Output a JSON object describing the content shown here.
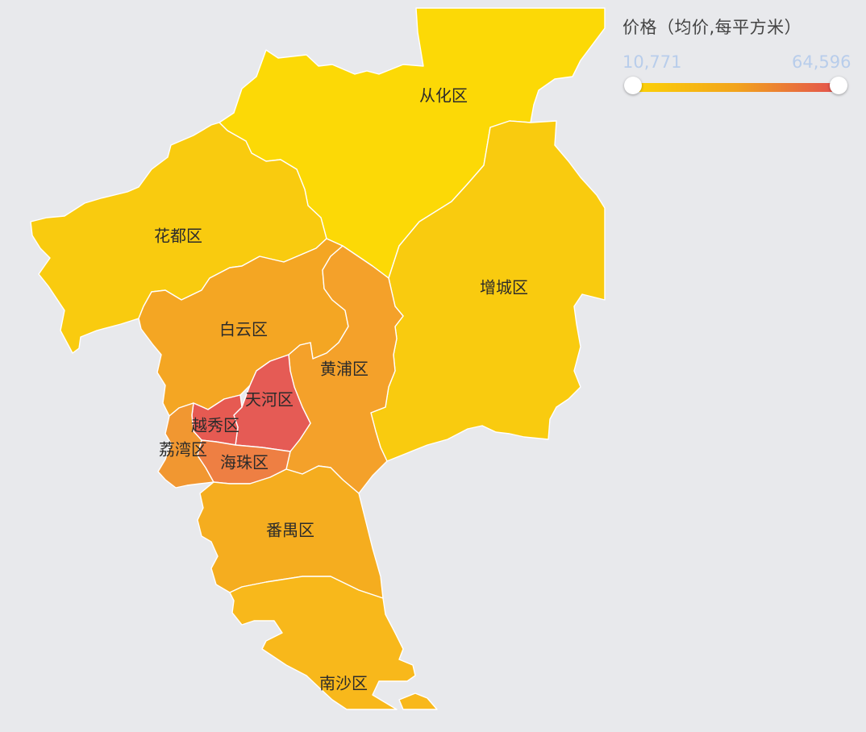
{
  "legend": {
    "title": "价格（均价,每平方米）",
    "min_label": "10,771",
    "max_label": "64,596",
    "min_value": 10771,
    "max_value": 64596,
    "color_low": "#fcd306",
    "color_mid": "#f2a41c",
    "color_high": "#e3504f"
  },
  "districts": [
    {
      "key": "conghua",
      "name": "从化区",
      "level": 0.0,
      "color": "#fcd906"
    },
    {
      "key": "huadu",
      "name": "花都区",
      "level": 0.18,
      "color": "#f9cb0f"
    },
    {
      "key": "zengcheng",
      "name": "增城区",
      "level": 0.18,
      "color": "#f9cb0f"
    },
    {
      "key": "baiyun",
      "name": "白云区",
      "level": 0.48,
      "color": "#f4a623"
    },
    {
      "key": "huangpu",
      "name": "黄浦区",
      "level": 0.5,
      "color": "#f4a12a"
    },
    {
      "key": "panyu",
      "name": "番禺区",
      "level": 0.45,
      "color": "#f5ad1f"
    },
    {
      "key": "nansha",
      "name": "南沙区",
      "level": 0.32,
      "color": "#f8b81b"
    },
    {
      "key": "liwan",
      "name": "荔湾区",
      "level": 0.62,
      "color": "#f19731"
    },
    {
      "key": "haizhu",
      "name": "海珠区",
      "level": 0.78,
      "color": "#ee7f43"
    },
    {
      "key": "yuexiu",
      "name": "越秀区",
      "level": 0.96,
      "color": "#e65a52"
    },
    {
      "key": "tianhe",
      "name": "天河区",
      "level": 1.0,
      "color": "#e55b55"
    }
  ]
}
